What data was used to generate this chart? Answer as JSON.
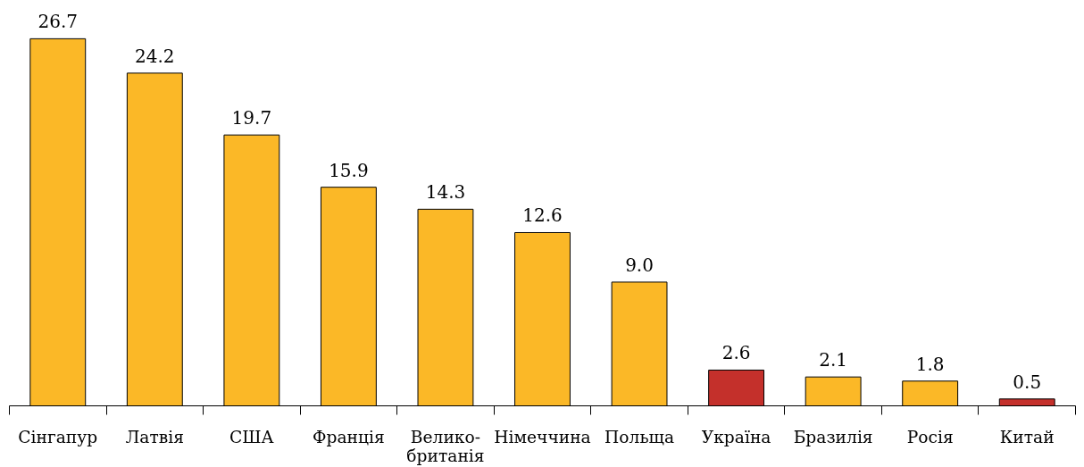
{
  "chart_data": {
    "type": "bar",
    "categories": [
      "Сінгапур",
      "Латвія",
      "США",
      "Франція",
      "Велико-\nбританія",
      "Німеччина",
      "Польща",
      "Україна",
      "Бразилія",
      "Росія",
      "Китай"
    ],
    "values": [
      26.7,
      24.2,
      19.7,
      15.9,
      14.3,
      12.6,
      9.0,
      2.6,
      2.1,
      1.8,
      0.5
    ],
    "value_labels": [
      "26.7",
      "24.2",
      "19.7",
      "15.9",
      "14.3",
      "12.6",
      "9.0",
      "2.6",
      "2.1",
      "1.8",
      "0.5"
    ],
    "colors": [
      "#fbb827",
      "#fbb827",
      "#fbb827",
      "#fbb827",
      "#fbb827",
      "#fbb827",
      "#fbb827",
      "#c4302b",
      "#fbb827",
      "#fbb827",
      "#c4302b"
    ],
    "grid": false,
    "tick_labels": "x"
  }
}
